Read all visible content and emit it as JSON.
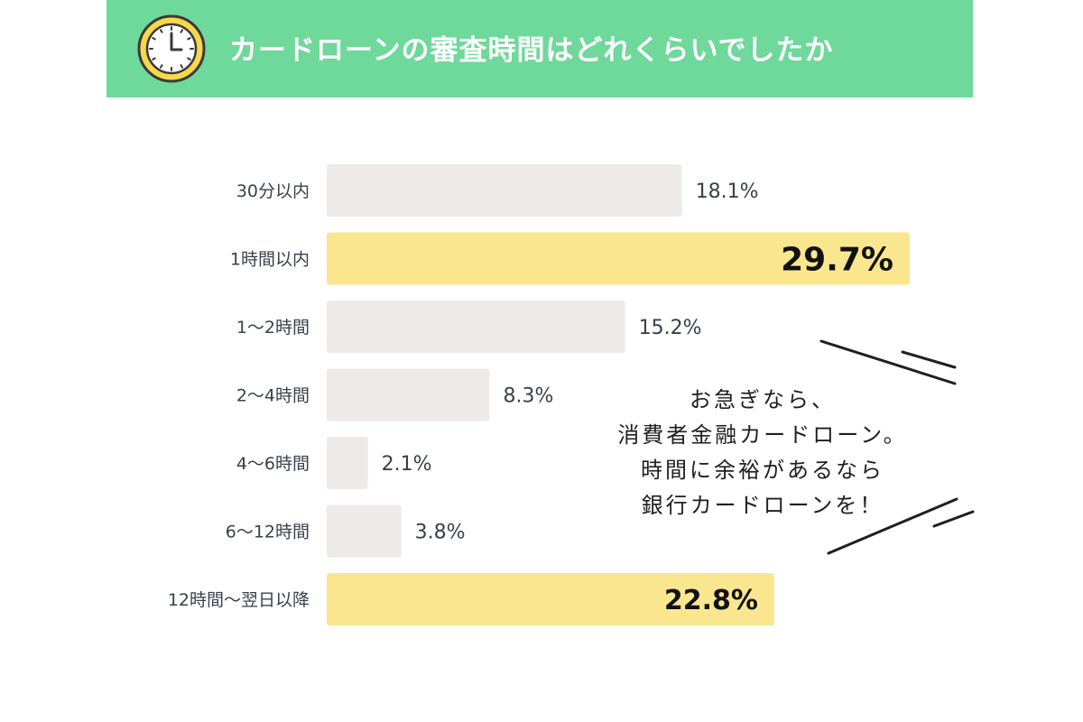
{
  "header": {
    "title": "カードローンの審査時間はどれくらいでしたか",
    "icon": "clock-icon",
    "background_color": "#6fd89b"
  },
  "chart_data": {
    "type": "bar",
    "orientation": "horizontal",
    "categories": [
      "30分以内",
      "1時間以内",
      "1～2時間",
      "2～4時間",
      "4～6時間",
      "6～12時間",
      "12時間～翌日以降"
    ],
    "values": [
      18.1,
      29.7,
      15.2,
      8.3,
      2.1,
      3.8,
      22.8
    ],
    "value_labels": [
      "18.1%",
      "29.7%",
      "15.2%",
      "8.3%",
      "2.1%",
      "3.8%",
      "22.8%"
    ],
    "highlighted": [
      false,
      true,
      false,
      false,
      false,
      false,
      true
    ],
    "colors": {
      "default": "#eeeaea",
      "highlight": "#fae68e"
    },
    "xlim": [
      0,
      29.7
    ],
    "grid": false
  },
  "note": {
    "lines": [
      "お急ぎなら、",
      "消費者金融カードローン。",
      "時間に余裕があるなら",
      "銀行カードローンを！"
    ]
  }
}
